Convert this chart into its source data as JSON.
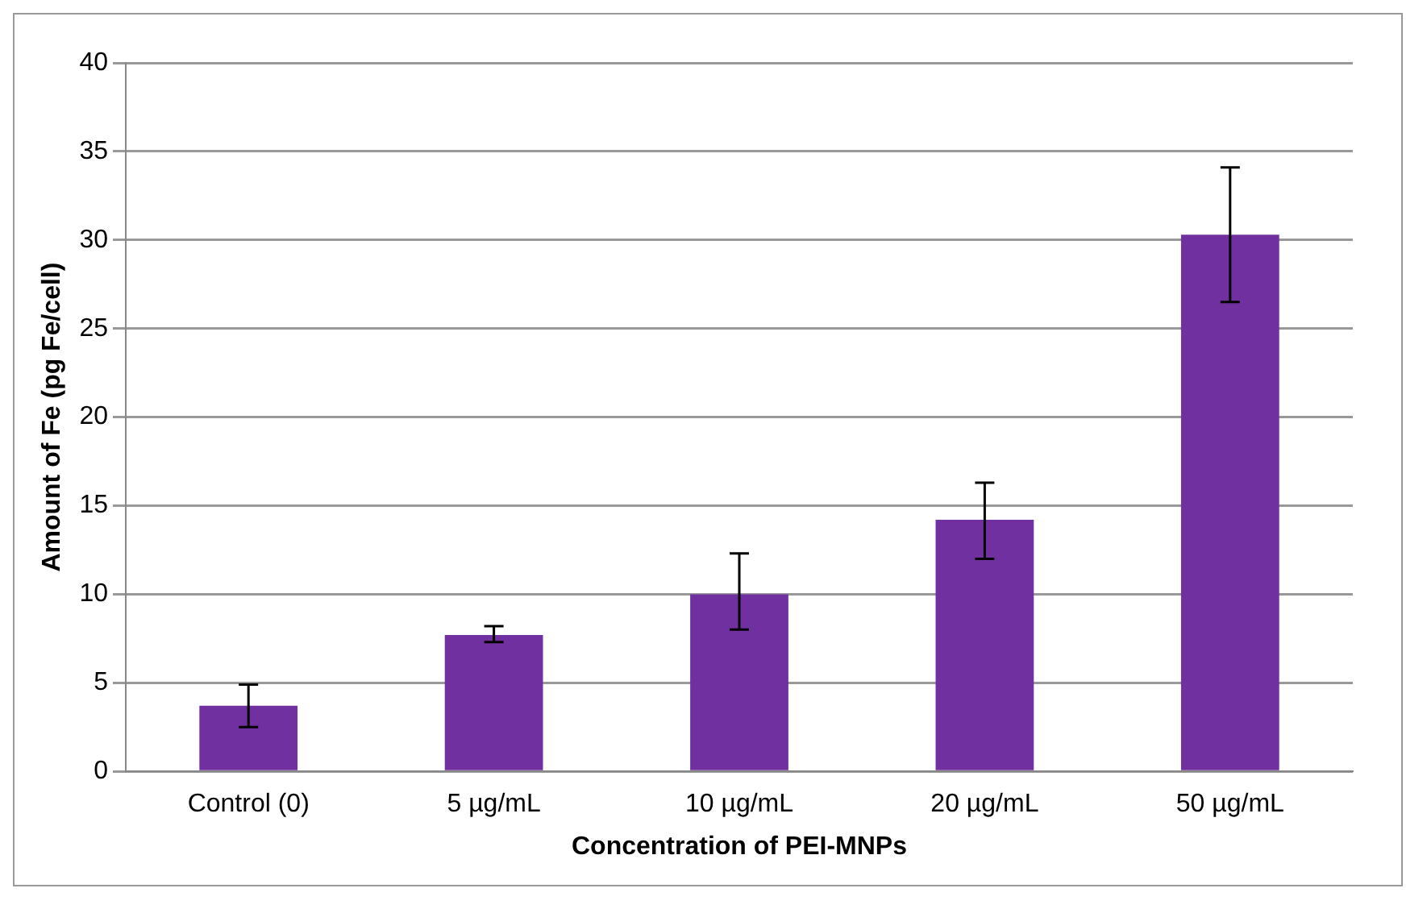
{
  "chart_data": {
    "type": "bar",
    "xlabel": "Concentration of PEI-MNPs",
    "ylabel": "Amount of Fe (pg Fe/cell)",
    "categories": [
      "Control (0)",
      "5 µg/mL",
      "10 µg/mL",
      "20 µg/mL",
      "50 µg/mL"
    ],
    "values": [
      3.7,
      7.7,
      10,
      14.2,
      30.3
    ],
    "errors": [
      [
        2.5,
        4.9
      ],
      [
        7.3,
        8.2
      ],
      [
        8,
        12.3
      ],
      [
        12,
        16.3
      ],
      [
        26.5,
        34.1
      ]
    ],
    "color": "#7030a0",
    "ylim": [
      0,
      40
    ],
    "yticks": [
      0,
      5,
      10,
      15,
      20,
      25,
      30,
      35,
      40
    ],
    "grid": "y"
  }
}
